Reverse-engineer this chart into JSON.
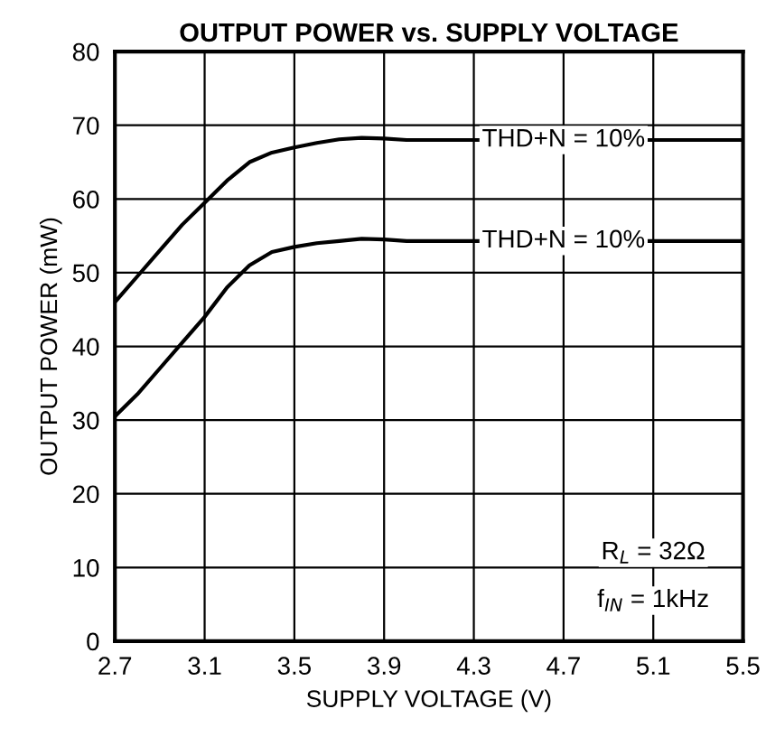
{
  "chart_data": {
    "type": "line",
    "title": "OUTPUT POWER vs. SUPPLY VOLTAGE",
    "xlabel": "SUPPLY VOLTAGE (V)",
    "ylabel": "OUTPUT POWER (mW)",
    "series": [
      {
        "color": "#000000",
        "x": [
          2.7,
          2.8,
          2.9,
          3.0,
          3.1,
          3.2,
          3.3,
          3.4,
          3.5,
          3.6,
          3.7,
          3.8,
          3.9,
          4.0,
          5.5
        ],
        "values": [
          46,
          49.5,
          53,
          56.5,
          59.5,
          62.5,
          65,
          66.3,
          67,
          67.6,
          68.1,
          68.3,
          68.2,
          68,
          68
        ]
      },
      {
        "color": "#000000",
        "x": [
          2.7,
          2.8,
          2.9,
          3.0,
          3.1,
          3.2,
          3.3,
          3.4,
          3.5,
          3.6,
          3.7,
          3.8,
          3.9,
          4.0,
          5.5
        ],
        "values": [
          30.5,
          33.5,
          37,
          40.5,
          44,
          48,
          51,
          52.8,
          53.5,
          54,
          54.3,
          54.6,
          54.5,
          54.3,
          54.3
        ]
      }
    ],
    "annotations": [
      {
        "text": "THD+N = 10%",
        "x": 4.7,
        "y": 68
      },
      {
        "text": "THD+N = 10%",
        "x": 4.7,
        "y": 54.3
      },
      "R$_{L}$ = 32Ω",
      "f$_{IN}$ = 1kHz"
    ],
    "xlim": [
      2.7,
      5.5
    ],
    "xticks": [
      2.7,
      3.1,
      3.5,
      3.9,
      4.3,
      4.7,
      5.1,
      5.5
    ],
    "ylim": [
      0,
      80
    ],
    "yticks": [
      0,
      10,
      20,
      30,
      40,
      50,
      60,
      70,
      80
    ],
    "grid": true,
    "legend": false,
    "marker": "none",
    "line_style": "solid"
  }
}
